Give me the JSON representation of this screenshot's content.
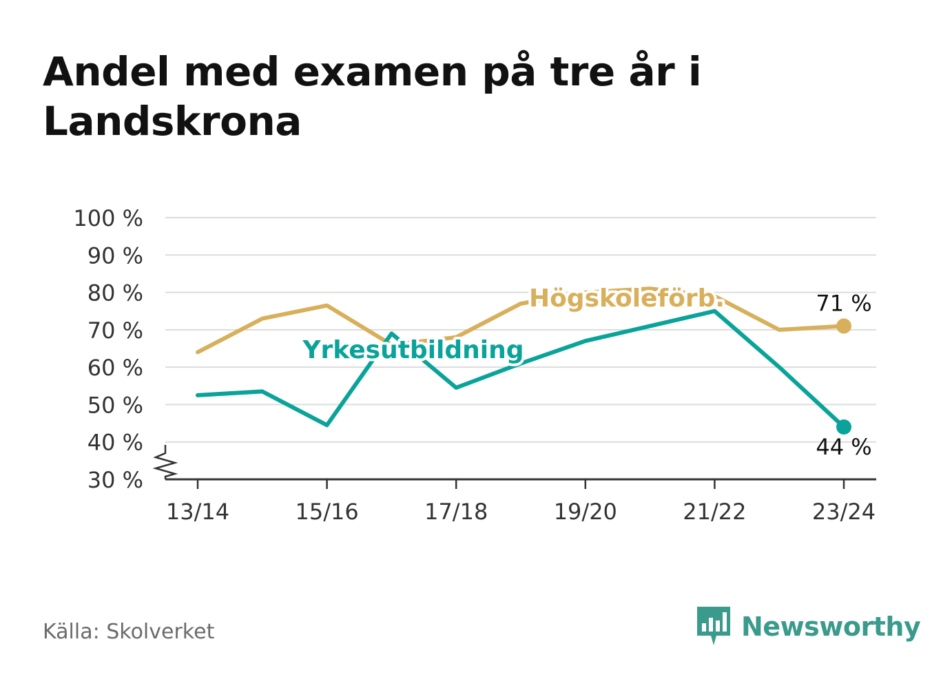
{
  "title": "Andel med examen på tre år i Landskrona",
  "source": "Källa: Skolverket",
  "brand": {
    "name": "Newsworthy",
    "icon": "newsworthy-logo-icon",
    "color": "#3a9a8c"
  },
  "chart_data": {
    "type": "line",
    "x": [
      "13/14",
      "14/15",
      "15/16",
      "16/17",
      "17/18",
      "18/19",
      "19/20",
      "20/21",
      "21/22",
      "22/23",
      "23/24"
    ],
    "x_tick_labels": [
      "13/14",
      "15/16",
      "17/18",
      "19/20",
      "21/22",
      "23/24"
    ],
    "y_ticks": [
      30,
      40,
      50,
      60,
      70,
      80,
      90,
      100
    ],
    "y_tick_labels": [
      "30 %",
      "40 %",
      "50 %",
      "60 %",
      "70 %",
      "80 %",
      "90 %",
      "100 %"
    ],
    "ylim": [
      30,
      100
    ],
    "y_axis_break": true,
    "grid": true,
    "series": [
      {
        "name": "Högskoleförb.",
        "color": "#d8b05c",
        "values": [
          64,
          73,
          76.5,
          66,
          68,
          77,
          80,
          81,
          79,
          70,
          71
        ],
        "end_label": "71 %"
      },
      {
        "name": "Yrkesutbildning",
        "color": "#0aa39a",
        "values": [
          52.5,
          53.5,
          44.5,
          69,
          54.5,
          61,
          67,
          71,
          75,
          60,
          44
        ],
        "end_label": "44 %"
      }
    ]
  }
}
